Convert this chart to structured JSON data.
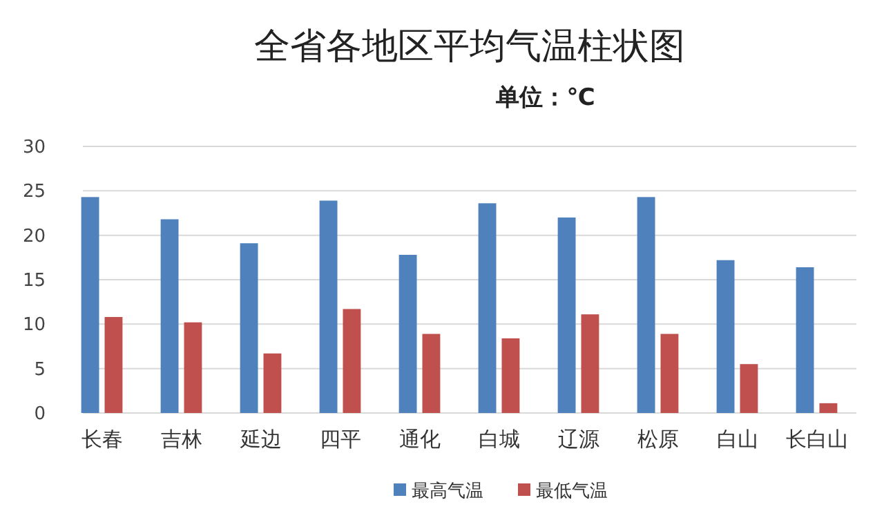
{
  "chart_data": {
    "type": "bar",
    "title": "全省各地区平均气温柱状图",
    "subtitle": "单位：℃",
    "categories": [
      "长春",
      "吉林",
      "延边",
      "四平",
      "通化",
      "白城",
      "辽源",
      "松原",
      "白山",
      "长白山"
    ],
    "series": [
      {
        "name": "最高气温",
        "color": "#4f81bd",
        "values": [
          24.3,
          21.8,
          19.1,
          23.9,
          17.8,
          23.6,
          22.0,
          24.3,
          17.2,
          16.4
        ]
      },
      {
        "name": "最低气温",
        "color": "#c0504d",
        "values": [
          10.8,
          10.2,
          6.7,
          11.7,
          8.9,
          8.4,
          11.1,
          8.9,
          5.5,
          1.1
        ]
      }
    ],
    "ylim": [
      0,
      30
    ],
    "yticks": [
      0,
      5,
      10,
      15,
      20,
      25,
      30
    ],
    "grid": "y",
    "legend": "bottom"
  }
}
